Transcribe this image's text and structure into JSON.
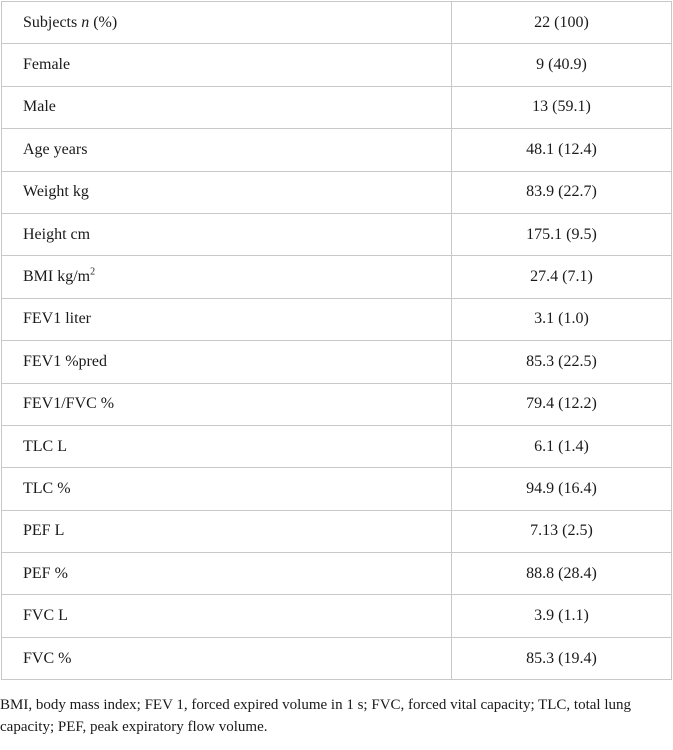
{
  "table": {
    "rows": [
      {
        "pre": "Subjects ",
        "ital": "n",
        "post": " (%)",
        "sup": "",
        "value": "22 (100)"
      },
      {
        "pre": "Female",
        "ital": "",
        "post": "",
        "sup": "",
        "value": "9 (40.9)"
      },
      {
        "pre": "Male",
        "ital": "",
        "post": "",
        "sup": "",
        "value": "13 (59.1)"
      },
      {
        "pre": "Age years",
        "ital": "",
        "post": "",
        "sup": "",
        "value": "48.1 (12.4)"
      },
      {
        "pre": "Weight kg",
        "ital": "",
        "post": "",
        "sup": "",
        "value": "83.9 (22.7)"
      },
      {
        "pre": "Height cm",
        "ital": "",
        "post": "",
        "sup": "",
        "value": "175.1 (9.5)"
      },
      {
        "pre": "BMI kg/m",
        "ital": "",
        "post": "",
        "sup": "2",
        "value": "27.4 (7.1)"
      },
      {
        "pre": "FEV1 liter",
        "ital": "",
        "post": "",
        "sup": "",
        "value": "3.1 (1.0)"
      },
      {
        "pre": "FEV1 %pred",
        "ital": "",
        "post": "",
        "sup": "",
        "value": "85.3 (22.5)"
      },
      {
        "pre": "FEV1/FVC %",
        "ital": "",
        "post": "",
        "sup": "",
        "value": "79.4 (12.2)"
      },
      {
        "pre": "TLC L",
        "ital": "",
        "post": "",
        "sup": "",
        "value": "6.1 (1.4)"
      },
      {
        "pre": "TLC %",
        "ital": "",
        "post": "",
        "sup": "",
        "value": "94.9 (16.4)"
      },
      {
        "pre": "PEF L",
        "ital": "",
        "post": "",
        "sup": "",
        "value": "7.13 (2.5)"
      },
      {
        "pre": "PEF %",
        "ital": "",
        "post": "",
        "sup": "",
        "value": "88.8 (28.4)"
      },
      {
        "pre": "FVC L",
        "ital": "",
        "post": "",
        "sup": "",
        "value": "3.9 (1.1)"
      },
      {
        "pre": "FVC %",
        "ital": "",
        "post": "",
        "sup": "",
        "value": "85.3 (19.4)"
      }
    ]
  },
  "footnote": "BMI, body mass index; FEV 1, forced expired volume in 1 s; FVC, forced vital capacity; TLC, total lung capacity; PEF, peak expiratory flow volume."
}
